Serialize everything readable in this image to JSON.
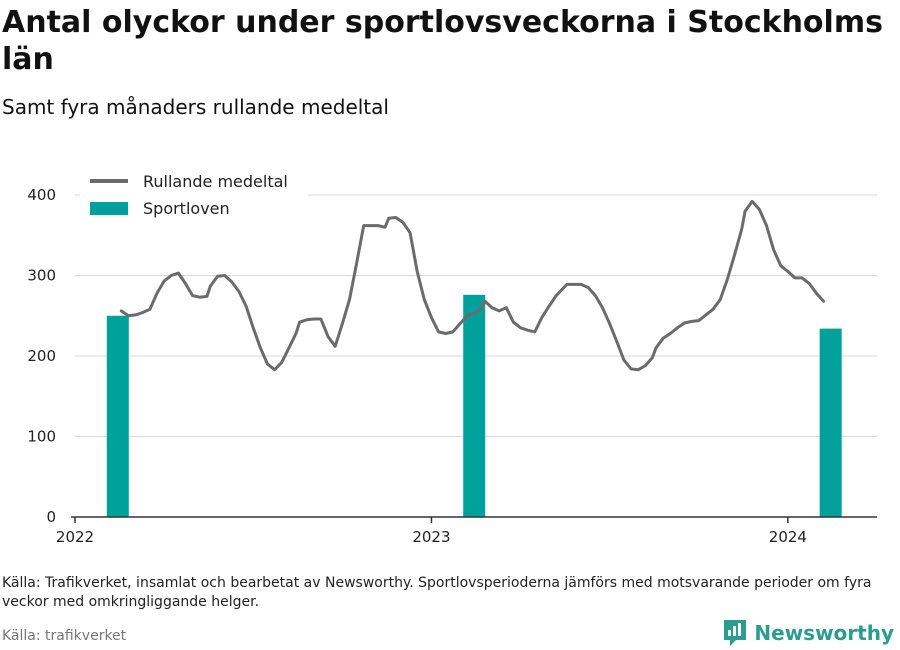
{
  "header": {
    "title": "Antal olyckor under sportlovsveckorna i Stockholms län",
    "subtitle": "Samt fyra månaders rullande medeltal"
  },
  "footer": {
    "note": "Källa: Trafikverket, insamlat och bearbetat av Newsworthy. Sportlovsperioderna jämförs med motsvarande perioder om fyra veckor med omkringliggande helger.",
    "credit": "Källa: trafikverket",
    "brand": "Newsworthy"
  },
  "colors": {
    "line": "#6b6b6e",
    "bar": "#00a19a",
    "grid": "#d9d9d9",
    "brand": "#2a9d8f"
  },
  "chart_data": {
    "type": "bar+line",
    "ylim": [
      0,
      400
    ],
    "yticks": [
      0,
      100,
      200,
      300,
      400
    ],
    "xlim": [
      2022.0,
      2024.25
    ],
    "xticks": [
      {
        "value": 2022,
        "label": "2022"
      },
      {
        "value": 2023,
        "label": "2023"
      },
      {
        "value": 2024,
        "label": "2024"
      }
    ],
    "legend": {
      "position": "top-left"
    },
    "grid": true,
    "series": [
      {
        "name": "Rullande medeltal",
        "type": "line",
        "x": [
          2022.13,
          2022.15,
          2022.17,
          2022.19,
          2022.21,
          2022.23,
          2022.25,
          2022.27,
          2022.29,
          2022.31,
          2022.33,
          2022.35,
          2022.37,
          2022.38,
          2022.4,
          2022.42,
          2022.44,
          2022.46,
          2022.48,
          2022.5,
          2022.52,
          2022.54,
          2022.56,
          2022.58,
          2022.6,
          2022.62,
          2022.63,
          2022.65,
          2022.67,
          2022.69,
          2022.71,
          2022.73,
          2022.75,
          2022.77,
          2022.79,
          2022.81,
          2022.83,
          2022.85,
          2022.87,
          2022.88,
          2022.9,
          2022.92,
          2022.94,
          2022.96,
          2022.98,
          2023.0,
          2023.02,
          2023.04,
          2023.06,
          2023.08,
          2023.1,
          2023.13,
          2023.15,
          2023.17,
          2023.19,
          2023.21,
          2023.23,
          2023.25,
          2023.27,
          2023.29,
          2023.31,
          2023.33,
          2023.35,
          2023.38,
          2023.4,
          2023.42,
          2023.44,
          2023.46,
          2023.48,
          2023.5,
          2023.52,
          2023.54,
          2023.56,
          2023.58,
          2023.6,
          2023.62,
          2023.63,
          2023.65,
          2023.67,
          2023.69,
          2023.71,
          2023.73,
          2023.75,
          2023.77,
          2023.79,
          2023.81,
          2023.83,
          2023.85,
          2023.87,
          2023.88,
          2023.9,
          2023.92,
          2023.94,
          2023.96,
          2023.98,
          2024.0,
          2024.02,
          2024.04,
          2024.06,
          2024.08,
          2024.1
        ],
        "y": [
          256,
          250,
          251,
          254,
          258,
          278,
          293,
          300,
          303,
          290,
          275,
          273,
          274,
          287,
          299,
          300,
          292,
          280,
          262,
          235,
          210,
          190,
          183,
          192,
          210,
          228,
          242,
          245,
          246,
          246,
          224,
          212,
          240,
          270,
          315,
          362,
          362,
          362,
          360,
          371,
          372,
          366,
          353,
          305,
          270,
          248,
          230,
          228,
          230,
          240,
          250,
          255,
          268,
          260,
          256,
          260,
          242,
          235,
          232,
          230,
          248,
          262,
          275,
          289,
          289,
          289,
          285,
          275,
          260,
          240,
          218,
          195,
          184,
          183,
          188,
          198,
          210,
          222,
          228,
          235,
          241,
          243,
          244,
          251,
          258,
          270,
          295,
          325,
          357,
          380,
          392,
          382,
          362,
          332,
          312,
          305,
          297,
          297,
          290,
          278,
          268
        ]
      },
      {
        "name": "Sportloven",
        "type": "bar",
        "x": [
          2022.12,
          2023.12,
          2024.12
        ],
        "values": [
          250,
          276,
          234
        ]
      }
    ]
  }
}
